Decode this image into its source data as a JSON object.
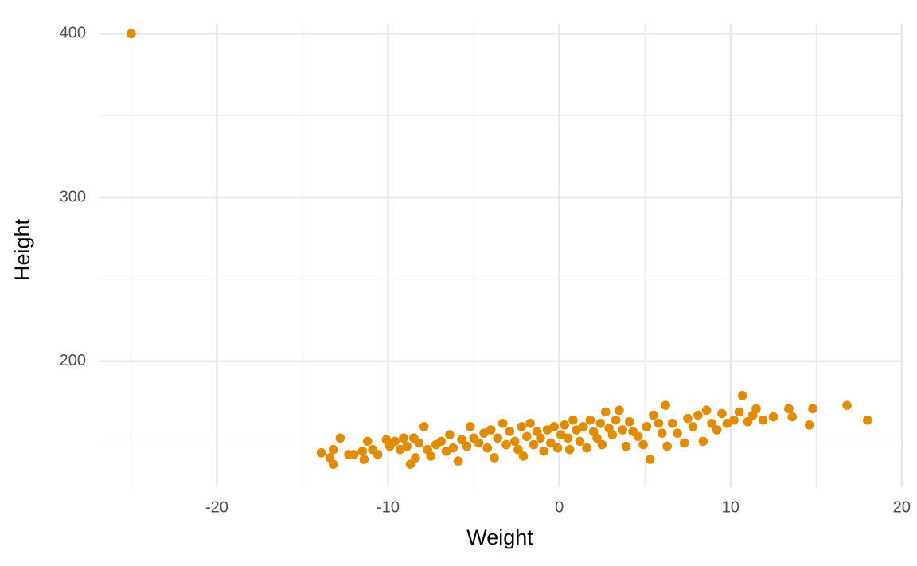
{
  "chart_data": {
    "type": "scatter",
    "x_label": "Weight",
    "y_label": "Height",
    "color": "#E08B00",
    "xlim": [
      -26.9,
      20.1
    ],
    "ylim": [
      123,
      406
    ],
    "xticks": [
      -20,
      -10,
      0,
      10,
      20
    ],
    "yticks": [
      200,
      300,
      400
    ],
    "xminor": [
      -25,
      -15,
      -5,
      5,
      15
    ],
    "yminor": [
      150,
      250,
      350
    ],
    "grid": true,
    "x": [
      -25,
      -13.9,
      -13.4,
      -13.2,
      -13.2,
      -12.8,
      -12.3,
      -12,
      -11.5,
      -11.4,
      -11.2,
      -10.9,
      -10.6,
      -10.1,
      -9.9,
      -9.6,
      -9.3,
      -9.1,
      -8.9,
      -8.7,
      -8.5,
      -8.4,
      -8.2,
      -7.9,
      -7.7,
      -7.5,
      -7.2,
      -6.9,
      -6.6,
      -6.4,
      -6.2,
      -5.9,
      -5.7,
      -5.4,
      -5.2,
      -5.0,
      -4.7,
      -4.4,
      -4.2,
      -4.0,
      -3.8,
      -3.6,
      -3.3,
      -3.1,
      -2.9,
      -2.6,
      -2.4,
      -2.2,
      -2.1,
      -1.9,
      -1.7,
      -1.5,
      -1.3,
      -1.1,
      -0.9,
      -0.7,
      -0.5,
      -0.3,
      -0.1,
      0.1,
      0.3,
      0.5,
      0.6,
      0.8,
      1,
      1.2,
      1.4,
      1.6,
      1.8,
      2,
      2.2,
      2.4,
      2.5,
      2.7,
      2.9,
      3.1,
      3.3,
      3.5,
      3.7,
      3.9,
      4.1,
      4.3,
      4.6,
      4.9,
      5.1,
      5.3,
      5.5,
      5.8,
      6,
      6.2,
      6.3,
      6.6,
      6.9,
      7.3,
      7.5,
      7.8,
      8.1,
      8.4,
      8.6,
      8.9,
      9.2,
      9.5,
      9.8,
      10.2,
      10.5,
      10.7,
      11,
      11.3,
      11.5,
      11.9,
      12.5,
      13.4,
      13.6,
      14.6,
      14.8,
      16.8,
      18
    ],
    "values": [
      400,
      144,
      141,
      137,
      146,
      153,
      143,
      143,
      145,
      140,
      151,
      146,
      143,
      152,
      148,
      151,
      146,
      153,
      148,
      137,
      153,
      141,
      150,
      160,
      146,
      142,
      149,
      151,
      145,
      155,
      147,
      139,
      152,
      148,
      160,
      153,
      150,
      156,
      147,
      158,
      141,
      153,
      162,
      149,
      157,
      151,
      146,
      160,
      142,
      154,
      162,
      149,
      157,
      153,
      145,
      158,
      150,
      160,
      147,
      155,
      161,
      153,
      146,
      164,
      158,
      151,
      160,
      147,
      164,
      157,
      153,
      162,
      149,
      169,
      159,
      155,
      164,
      170,
      158,
      148,
      163,
      157,
      154,
      149,
      160,
      140,
      167,
      162,
      156,
      173,
      148,
      162,
      156,
      150,
      165,
      160,
      167,
      151,
      170,
      162,
      158,
      168,
      162,
      164,
      169,
      179,
      163,
      167,
      171,
      164,
      166,
      171,
      166,
      161,
      171,
      173,
      164
    ]
  }
}
